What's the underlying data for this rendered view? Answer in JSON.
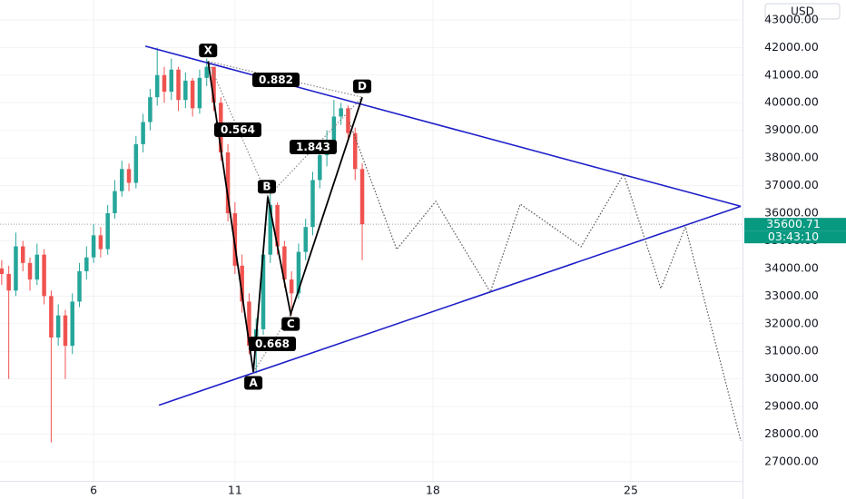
{
  "chart_data": {
    "type": "candlestick",
    "currency": "USD",
    "x": [
      2.75,
      3,
      3.25,
      3.5,
      3.75,
      4,
      4.25,
      4.5,
      4.75,
      5,
      5.25,
      5.5,
      5.75,
      6,
      6.25,
      6.5,
      6.75,
      7,
      7.25,
      7.5,
      7.75,
      8,
      8.25,
      8.5,
      8.75,
      9,
      9.25,
      9.5,
      9.75,
      10,
      10.25,
      10.5,
      10.75,
      11,
      11.25,
      11.5,
      11.75,
      12,
      12.25,
      12.5,
      12.75,
      13,
      13.25,
      13.5,
      13.75,
      14,
      14.25,
      14.5,
      14.75,
      15,
      15.25,
      15.5
    ],
    "open": [
      34000,
      33800,
      33200,
      34800,
      34200,
      33600,
      34500,
      33000,
      31500,
      32300,
      31200,
      32800,
      33900,
      34400,
      35200,
      34700,
      36000,
      36800,
      37600,
      37100,
      38500,
      39300,
      40200,
      41000,
      40400,
      41200,
      40100,
      40800,
      39800,
      40900,
      41300,
      40000,
      38200,
      36000,
      34100,
      32800,
      31200,
      31800,
      34500,
      36300,
      34800,
      33600,
      33100,
      34600,
      35500,
      37200,
      38100,
      38600,
      39500,
      39800,
      38900,
      37600
    ],
    "high": [
      34300,
      34100,
      35300,
      35000,
      34400,
      34900,
      34700,
      33200,
      32700,
      32500,
      33100,
      34200,
      34800,
      35600,
      35500,
      36300,
      37200,
      37900,
      37800,
      38800,
      39600,
      40500,
      42000,
      41300,
      41600,
      41300,
      41100,
      40900,
      41200,
      41600,
      41300,
      40200,
      38500,
      36400,
      34500,
      33100,
      32200,
      34800,
      36700,
      36400,
      35000,
      33900,
      34900,
      35800,
      37500,
      38400,
      39000,
      40100,
      40000,
      39900,
      39100,
      37800
    ],
    "low": [
      33400,
      30000,
      33000,
      33900,
      33200,
      33400,
      32700,
      27700,
      31200,
      30000,
      30900,
      32600,
      33600,
      34200,
      34400,
      34500,
      35800,
      36600,
      36800,
      36900,
      38200,
      39000,
      39900,
      40000,
      40100,
      39700,
      39800,
      39500,
      39600,
      40600,
      39700,
      37900,
      35700,
      33800,
      32400,
      30900,
      30200,
      31600,
      34200,
      34500,
      33300,
      32300,
      32900,
      34300,
      35200,
      36900,
      37700,
      38300,
      39200,
      38700,
      37200,
      34300
    ],
    "close": [
      33800,
      33200,
      34800,
      34200,
      33600,
      34500,
      33000,
      31500,
      32300,
      31200,
      32800,
      33900,
      34400,
      35200,
      34700,
      36000,
      36800,
      37600,
      37100,
      38500,
      39300,
      40200,
      41000,
      40400,
      41200,
      40100,
      40800,
      39800,
      40900,
      41300,
      40000,
      38200,
      36000,
      34100,
      32800,
      31200,
      31800,
      34500,
      36300,
      34800,
      33600,
      33100,
      34600,
      35500,
      37200,
      38100,
      38600,
      39500,
      39800,
      38900,
      37600,
      35600
    ],
    "up_color": "#26a69a",
    "down_color": "#ef5350",
    "xlim": [
      2.69,
      28.95
    ],
    "ylim": [
      26310,
      43720
    ],
    "xticks": [
      6,
      11,
      18,
      25
    ],
    "yticks": [
      {
        "value": 27000,
        "label": "27000.00"
      },
      {
        "value": 28000,
        "label": "28000.00"
      },
      {
        "value": 29000,
        "label": "29000.00"
      },
      {
        "value": 30000,
        "label": "30000.00"
      },
      {
        "value": 31000,
        "label": "31000.00"
      },
      {
        "value": 32000,
        "label": "32000.00"
      },
      {
        "value": 33000,
        "label": "33000.00"
      },
      {
        "value": 34000,
        "label": "34000.00"
      },
      {
        "value": 35000,
        "label": "35000.00"
      },
      {
        "value": 36000,
        "label": "36000.00"
      },
      {
        "value": 37000,
        "label": "37000.00"
      },
      {
        "value": 38000,
        "label": "38000.00"
      },
      {
        "value": 39000,
        "label": "39000.00"
      },
      {
        "value": 40000,
        "label": "40000.00"
      },
      {
        "value": 41000,
        "label": "41000.00"
      },
      {
        "value": 42000,
        "label": "42000.00"
      },
      {
        "value": 43000,
        "label": "43000.00"
      }
    ],
    "grid": true,
    "current_price": {
      "value": 35600.71,
      "label": "35600.71",
      "countdown": "03:43:10",
      "color": "#089981"
    },
    "pattern": {
      "labels": [
        "X",
        "A",
        "B",
        "C",
        "D"
      ],
      "x": [
        10.05,
        11.65,
        12.16,
        12.97,
        15.5
      ],
      "y": [
        41500,
        30250,
        36600,
        32350,
        40200
      ],
      "color": "#000000"
    },
    "ratios": [
      "0.882",
      "0.564",
      "1.843",
      "0.668"
    ],
    "trendlines": {
      "color": "#1f1fc8",
      "lines": [
        {
          "x": [
            7.83,
            28.89
          ],
          "y": [
            42050,
            36250
          ]
        },
        {
          "x": [
            8.31,
            28.89
          ],
          "y": [
            29050,
            36250
          ]
        }
      ]
    },
    "projection": {
      "x": [
        15.05,
        16.72,
        18.1,
        20.03,
        21.09,
        23.24,
        24.75,
        26.06,
        26.93,
        28.89
      ],
      "y": [
        39288,
        34689,
        36430,
        33144,
        36331,
        34787,
        37415,
        33275,
        35510,
        27757
      ]
    }
  }
}
